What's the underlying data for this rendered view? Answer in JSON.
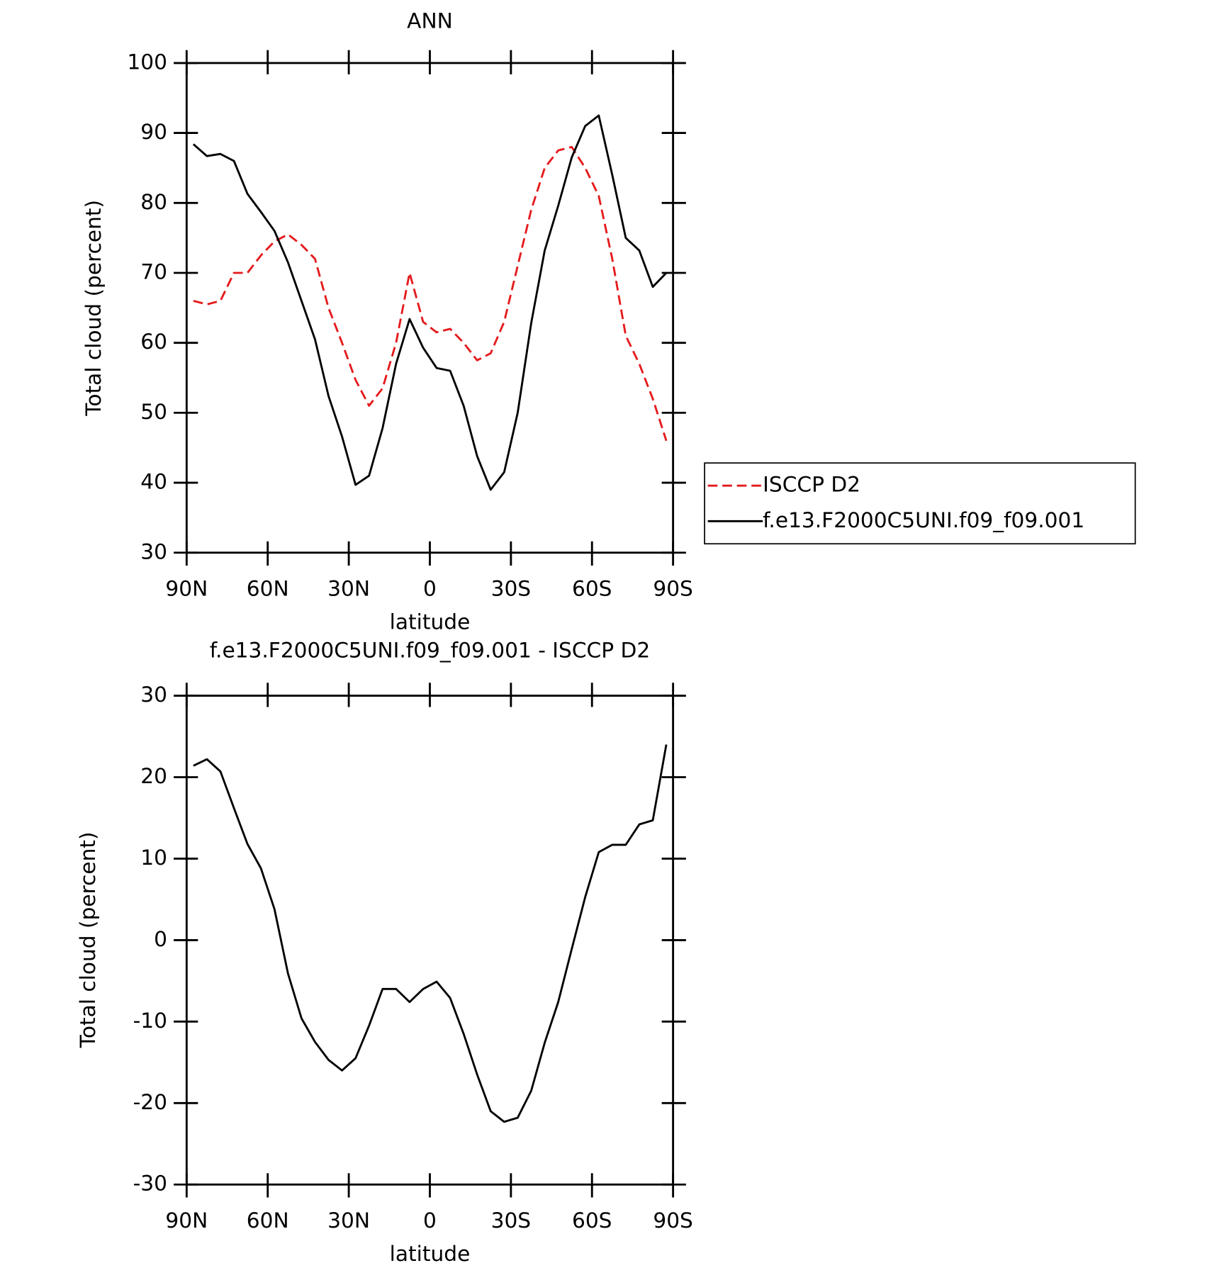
{
  "chart_data": [
    {
      "type": "line",
      "title": "ANN",
      "xlabel": "latitude",
      "ylabel": "Total cloud (percent)",
      "x": [
        87.5,
        82.5,
        77.5,
        72.5,
        67.5,
        62.5,
        57.5,
        52.5,
        47.5,
        42.5,
        37.5,
        32.5,
        27.5,
        22.5,
        17.5,
        12.5,
        7.5,
        2.5,
        -2.5,
        -7.5,
        -12.5,
        -17.5,
        -22.5,
        -27.5,
        -32.5,
        -37.5,
        -42.5,
        -47.5,
        -52.5,
        -57.5,
        -62.5,
        -67.5,
        -72.5,
        -77.5,
        -82.5,
        -87.5
      ],
      "series": [
        {
          "name": "ISCCP D2",
          "color": "#e41a1c",
          "dash": true,
          "values": [
            66,
            65.5,
            66,
            70,
            70,
            72.5,
            74.5,
            75.5,
            74,
            72,
            65,
            60,
            54.7,
            51,
            53.5,
            60,
            70,
            63,
            61.5,
            62,
            60,
            57.5,
            58.5,
            63,
            71,
            79,
            85,
            87.5,
            88,
            85,
            81,
            72,
            61,
            57,
            52,
            46
          ]
        },
        {
          "name": "f.e13.F2000C5UNI.f09_f09.001",
          "color": "#000000",
          "dash": false,
          "values": [
            88.4,
            86.7,
            87,
            86,
            81.3,
            78.7,
            76,
            71.5,
            66,
            60.5,
            52.4,
            46.6,
            39.7,
            41,
            47.8,
            57,
            63.4,
            59.3,
            56.4,
            56,
            51,
            43.8,
            39,
            41.5,
            50,
            62.8,
            73.2,
            79.6,
            86.5,
            91,
            92.5,
            84,
            75,
            73.2,
            68,
            70
          ]
        }
      ],
      "xlim": [
        90,
        -90
      ],
      "xticks": [
        {
          "value": 90,
          "label": "90N"
        },
        {
          "value": 60,
          "label": "60N"
        },
        {
          "value": 30,
          "label": "30N"
        },
        0,
        {
          "value": -30,
          "label": "30S"
        },
        {
          "value": -60,
          "label": "60S"
        },
        {
          "value": -90,
          "label": "90S"
        }
      ],
      "ylim": [
        30,
        100
      ],
      "yticks": [
        30,
        40,
        50,
        60,
        70,
        80,
        90,
        100
      ],
      "legend": "right"
    },
    {
      "type": "line",
      "title": "f.e13.F2000C5UNI.f09_f09.001 - ISCCP D2",
      "xlabel": "latitude",
      "ylabel": "Total cloud (percent)",
      "x": [
        87.5,
        82.5,
        77.5,
        72.5,
        67.5,
        62.5,
        57.5,
        52.5,
        47.5,
        42.5,
        37.5,
        32.5,
        27.5,
        22.5,
        17.5,
        12.5,
        7.5,
        2.5,
        -2.5,
        -7.5,
        -12.5,
        -17.5,
        -22.5,
        -27.5,
        -32.5,
        -37.5,
        -42.5,
        -47.5,
        -52.5,
        -57.5,
        -62.5,
        -67.5,
        -72.5,
        -77.5,
        -82.5,
        -87.5
      ],
      "values": [
        21.4,
        22.2,
        20.7,
        16.2,
        11.8,
        8.8,
        3.8,
        -4.1,
        -9.6,
        -12.5,
        -14.7,
        -16,
        -14.5,
        -10.5,
        -6,
        -6,
        -7.6,
        -6,
        -5.1,
        -7.1,
        -11.5,
        -16.5,
        -21,
        -22.3,
        -21.8,
        -18.5,
        -12.6,
        -7.6,
        -1.1,
        5.3,
        10.8,
        11.7,
        11.7,
        14.2,
        14.7,
        24
      ],
      "color": "#000000",
      "xlim": [
        90,
        -90
      ],
      "xticks": [
        {
          "value": 90,
          "label": "90N"
        },
        {
          "value": 60,
          "label": "60N"
        },
        {
          "value": 30,
          "label": "30N"
        },
        0,
        {
          "value": -30,
          "label": "30S"
        },
        {
          "value": -60,
          "label": "60S"
        },
        {
          "value": -90,
          "label": "90S"
        }
      ],
      "ylim": [
        -30,
        30
      ],
      "yticks": [
        -30,
        -20,
        -10,
        0,
        10,
        20,
        30
      ]
    }
  ]
}
